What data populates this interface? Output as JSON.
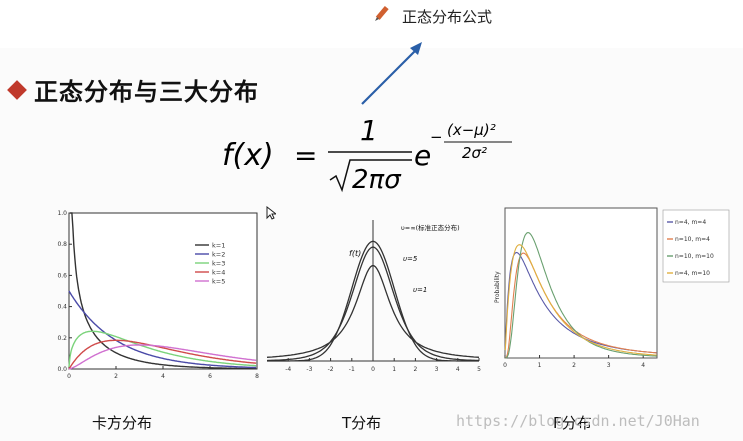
{
  "annotation": {
    "label": "正态分布公式",
    "icon": "pencil-icon"
  },
  "heading": {
    "title": "正态分布与三大分布",
    "bullet_color": "#c0392b"
  },
  "formula": {
    "lhs": "f(x)",
    "eq": "=",
    "numerator": "1",
    "sqrt_body": "2πσ",
    "base": "e",
    "exp_num": "(x−μ)²",
    "exp_den": "2σ²"
  },
  "captions": {
    "chi": "卡方分布",
    "t": "T分布",
    "f": "F分布"
  },
  "watermark": "https://blog.csdn.net/J0Han",
  "chart_data": [
    {
      "type": "line",
      "title": "",
      "xlim": [
        0,
        8
      ],
      "ylim": [
        0,
        1.0
      ],
      "x_ticks": [
        "0",
        "2",
        "4",
        "6",
        "8"
      ],
      "y_ticks": [
        "0.0",
        "0.2",
        "0.4",
        "0.6",
        "0.8",
        "1.0"
      ],
      "series": [
        {
          "name": "k=1",
          "color": "#333333"
        },
        {
          "name": "k=2",
          "color": "#4a4aa8"
        },
        {
          "name": "k=3",
          "color": "#7bd37b"
        },
        {
          "name": "k=4",
          "color": "#d04a4a"
        },
        {
          "name": "k=5",
          "color": "#d070d0"
        }
      ]
    },
    {
      "type": "line",
      "title": "",
      "xlim": [
        -5,
        5
      ],
      "ylim": [
        0,
        0.45
      ],
      "x_ticks": [
        "-4",
        "-3",
        "-2",
        "-1",
        "0",
        "1",
        "2",
        "3",
        "4",
        "5"
      ],
      "y_label": "f(t)",
      "labels": {
        "normal": "υ=∞(标准正态分布)",
        "t5": "υ=5",
        "t1": "υ=1"
      },
      "series": [
        {
          "name": "υ=∞",
          "color": "#333333"
        },
        {
          "name": "υ=5",
          "color": "#333333"
        },
        {
          "name": "υ=1",
          "color": "#333333"
        }
      ]
    },
    {
      "type": "line",
      "title": "",
      "xlim": [
        0,
        4.4
      ],
      "ylim": [
        0,
        0.9
      ],
      "x_ticks": [
        "0",
        "1",
        "2",
        "3",
        "4"
      ],
      "y_label": "Probability",
      "series": [
        {
          "name": "n=4, m=4",
          "color": "#5a5aa8"
        },
        {
          "name": "n=10, m=4",
          "color": "#e08050"
        },
        {
          "name": "n=10, m=10",
          "color": "#6aa070"
        },
        {
          "name": "n=4, m=10",
          "color": "#e0b040"
        }
      ]
    }
  ]
}
